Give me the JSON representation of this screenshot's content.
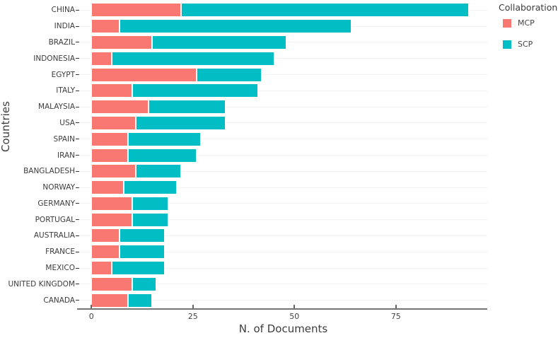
{
  "chart_data": {
    "type": "bar",
    "orientation": "horizontal",
    "stacked": true,
    "title": "",
    "xlabel": "N. of Documents",
    "ylabel": "Countries",
    "legend_title": "Collaboration",
    "legend_position": "top-right",
    "grid": "horizontal category gridlines only",
    "xlim": [
      -3,
      97.5
    ],
    "x_ticks": [
      0,
      25,
      50,
      75
    ],
    "categories": [
      "CHINA",
      "INDIA",
      "BRAZIL",
      "INDONESIA",
      "EGYPT",
      "ITALY",
      "MALAYSIA",
      "USA",
      "SPAIN",
      "IRAN",
      "BANGLADESH",
      "NORWAY",
      "GERMANY",
      "PORTUGAL",
      "AUSTRALIA",
      "FRANCE",
      "MEXICO",
      "UNITED KINGDOM",
      "CANADA"
    ],
    "series": [
      {
        "name": "MCP",
        "color": "#F97872",
        "values": [
          22,
          7,
          15,
          5,
          26,
          10,
          14,
          11,
          9,
          9,
          11,
          8,
          10,
          10,
          7,
          7,
          5,
          10,
          9
        ]
      },
      {
        "name": "SCP",
        "color": "#00BEC4",
        "values": [
          71,
          57,
          33,
          40,
          16,
          31,
          19,
          22,
          18,
          17,
          11,
          13,
          9,
          9,
          11,
          11,
          13,
          6,
          6
        ]
      }
    ],
    "totals": [
      93,
      64,
      48,
      45,
      42,
      41,
      33,
      33,
      27,
      26,
      22,
      21,
      19,
      19,
      18,
      18,
      18,
      16,
      15
    ]
  },
  "theme": {
    "background": "#ffffff",
    "axis_line_color": "#757575",
    "gridline_color": "#f1f1f1",
    "tick_text_color": "#444444",
    "category_text_color": "#3d3d3d",
    "axis_title_color": "#3d3d3d",
    "bar_border_color": "#ffffff"
  }
}
